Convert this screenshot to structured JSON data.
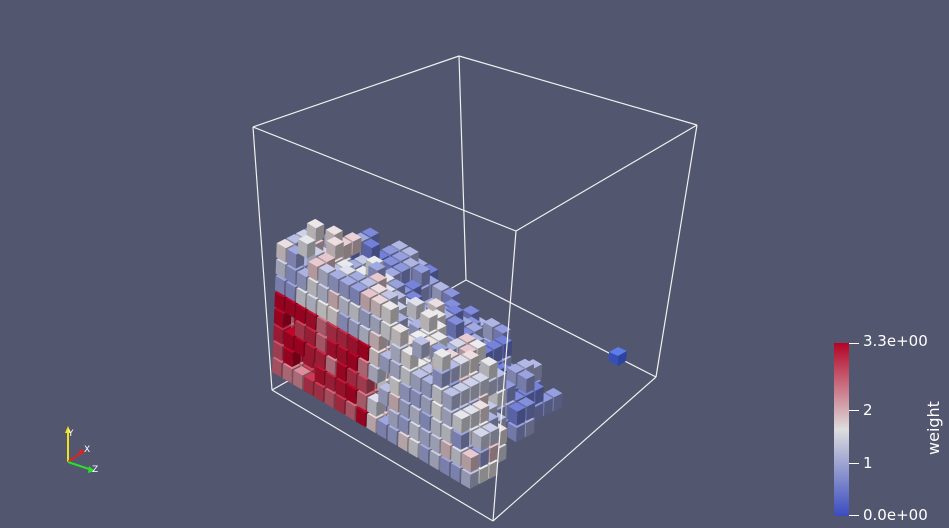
{
  "view": {
    "background": "#52566e",
    "colormap": [
      "#3b4cc0",
      "#dddddd",
      "#b40426"
    ]
  },
  "color_legend": {
    "title": "weight",
    "max_label": "3.3e+00",
    "mid_high_label": "2",
    "mid_low_label": "1",
    "min_label": "0.0e+00",
    "range": [
      0.0,
      3.3
    ],
    "tick_values": [
      3.3,
      2,
      1,
      0
    ]
  },
  "orientation_axes": {
    "y_label": "Y",
    "x_label": "X",
    "z_label": "Z",
    "y_color": "#f2e21d",
    "x_color": "#e0231f",
    "z_color": "#2ddc2d"
  }
}
